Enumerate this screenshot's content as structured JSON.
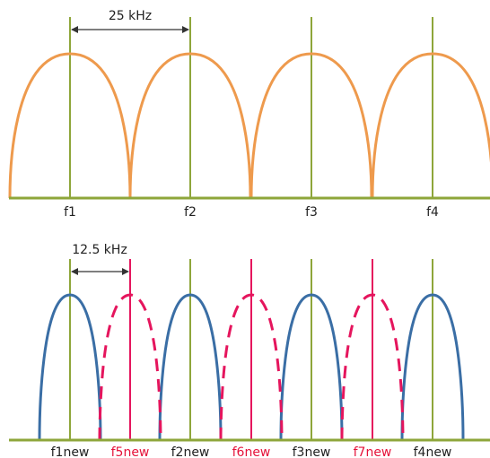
{
  "colors": {
    "orange": "#ee9a4d",
    "green": "#8ea63a",
    "blue": "#3a6ea5",
    "pink": "#e5155d",
    "red_text": "#e5133a",
    "text": "#222222",
    "arrow": "#333333"
  },
  "top": {
    "spacing_label": "25 kHz",
    "channels": [
      {
        "label": "f1"
      },
      {
        "label": "f2"
      },
      {
        "label": "f3"
      },
      {
        "label": "f4"
      }
    ]
  },
  "bottom": {
    "spacing_label": "12.5 kHz",
    "channels": [
      {
        "label": "f1new",
        "kind": "existing"
      },
      {
        "label": "f5new",
        "kind": "new"
      },
      {
        "label": "f2new",
        "kind": "existing"
      },
      {
        "label": "f6new",
        "kind": "new"
      },
      {
        "label": "f3new",
        "kind": "existing"
      },
      {
        "label": "f7new",
        "kind": "new"
      },
      {
        "label": "f4new",
        "kind": "existing"
      }
    ]
  }
}
